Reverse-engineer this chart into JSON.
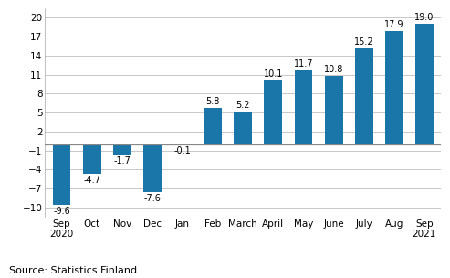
{
  "categories": [
    "Sep\n2020",
    "Oct",
    "Nov",
    "Dec",
    "Jan",
    "Feb",
    "March",
    "April",
    "May",
    "June",
    "July",
    "Aug",
    "Sep\n2021"
  ],
  "values": [
    -9.6,
    -4.7,
    -1.7,
    -7.6,
    -0.1,
    5.8,
    5.2,
    10.1,
    11.7,
    10.8,
    15.2,
    17.9,
    19.0
  ],
  "bar_color": "#1a75a8",
  "background_color": "#ffffff",
  "grid_color": "#c8c8c8",
  "ylim": [
    -11.5,
    21.5
  ],
  "yticks": [
    -10,
    -7,
    -4,
    -1,
    2,
    5,
    8,
    11,
    14,
    17,
    20
  ],
  "source_text": "Source: Statistics Finland",
  "label_fontsize": 7.0,
  "tick_fontsize": 7.5,
  "source_fontsize": 8.0,
  "zero_line_color": "#888888"
}
